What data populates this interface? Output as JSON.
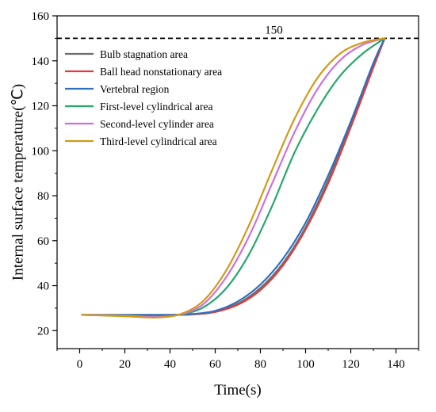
{
  "chart_data": {
    "type": "line",
    "xlabel": "Time(s)",
    "ylabel": "Internal surface temperature(℃)",
    "xlim": [
      -10,
      150
    ],
    "ylim": [
      12,
      160
    ],
    "x_ticks": [
      0,
      20,
      40,
      60,
      80,
      100,
      120,
      140
    ],
    "y_ticks": [
      20,
      40,
      60,
      80,
      100,
      120,
      140,
      160
    ],
    "grid": false,
    "legend_position": "top-left",
    "reference_line": {
      "y": 150,
      "label": "150",
      "style": "dashed",
      "color": "#000000"
    },
    "series": [
      {
        "name": "Bulb stagnation area",
        "color": "#6e6e6e",
        "x": [
          1,
          20,
          40,
          50,
          60,
          70,
          80,
          90,
          100,
          110,
          120,
          130,
          135
        ],
        "y": [
          27,
          27,
          27,
          27.3,
          28.5,
          32,
          39,
          50,
          66,
          87,
          112,
          138,
          150
        ]
      },
      {
        "name": "Ball head nonstationary area",
        "color": "#e03c3c",
        "x": [
          1,
          20,
          40,
          50,
          60,
          70,
          80,
          90,
          100,
          110,
          120,
          130,
          135
        ],
        "y": [
          27,
          27,
          27,
          27.2,
          28.3,
          31.5,
          38,
          49,
          65,
          85.5,
          110.5,
          137,
          150
        ]
      },
      {
        "name": "Vertebral region",
        "color": "#2e6fc0",
        "x": [
          1,
          20,
          40,
          50,
          60,
          70,
          80,
          90,
          100,
          110,
          120,
          130,
          135
        ],
        "y": [
          27,
          27,
          27,
          27.4,
          28.8,
          33,
          40.5,
          52,
          68,
          89,
          113,
          139,
          150
        ]
      },
      {
        "name": "First-level cylindrical area",
        "color": "#27a86b",
        "x": [
          1,
          20,
          34,
          45,
          55,
          65,
          75,
          85,
          95,
          105,
          115,
          125,
          135
        ],
        "y": [
          27,
          26.8,
          26.2,
          27.2,
          30.5,
          39,
          54,
          75,
          99,
          118,
          133,
          143,
          150
        ]
      },
      {
        "name": "Second-level cylinder area",
        "color": "#cf6fdf",
        "x": [
          1,
          20,
          34,
          45,
          55,
          65,
          75,
          85,
          95,
          105,
          115,
          125,
          135
        ],
        "y": [
          27,
          26.6,
          26,
          27.3,
          32,
          44,
          62,
          85,
          108,
          127,
          140,
          147,
          150
        ]
      },
      {
        "name": "Third-level cylindrical area",
        "color": "#d49a16",
        "x": [
          1,
          20,
          34,
          45,
          55,
          65,
          75,
          85,
          95,
          105,
          115,
          125,
          135
        ],
        "y": [
          27,
          26.4,
          25.8,
          27.5,
          33.5,
          47,
          67,
          91,
          114,
          132,
          143,
          148,
          150
        ]
      }
    ]
  }
}
